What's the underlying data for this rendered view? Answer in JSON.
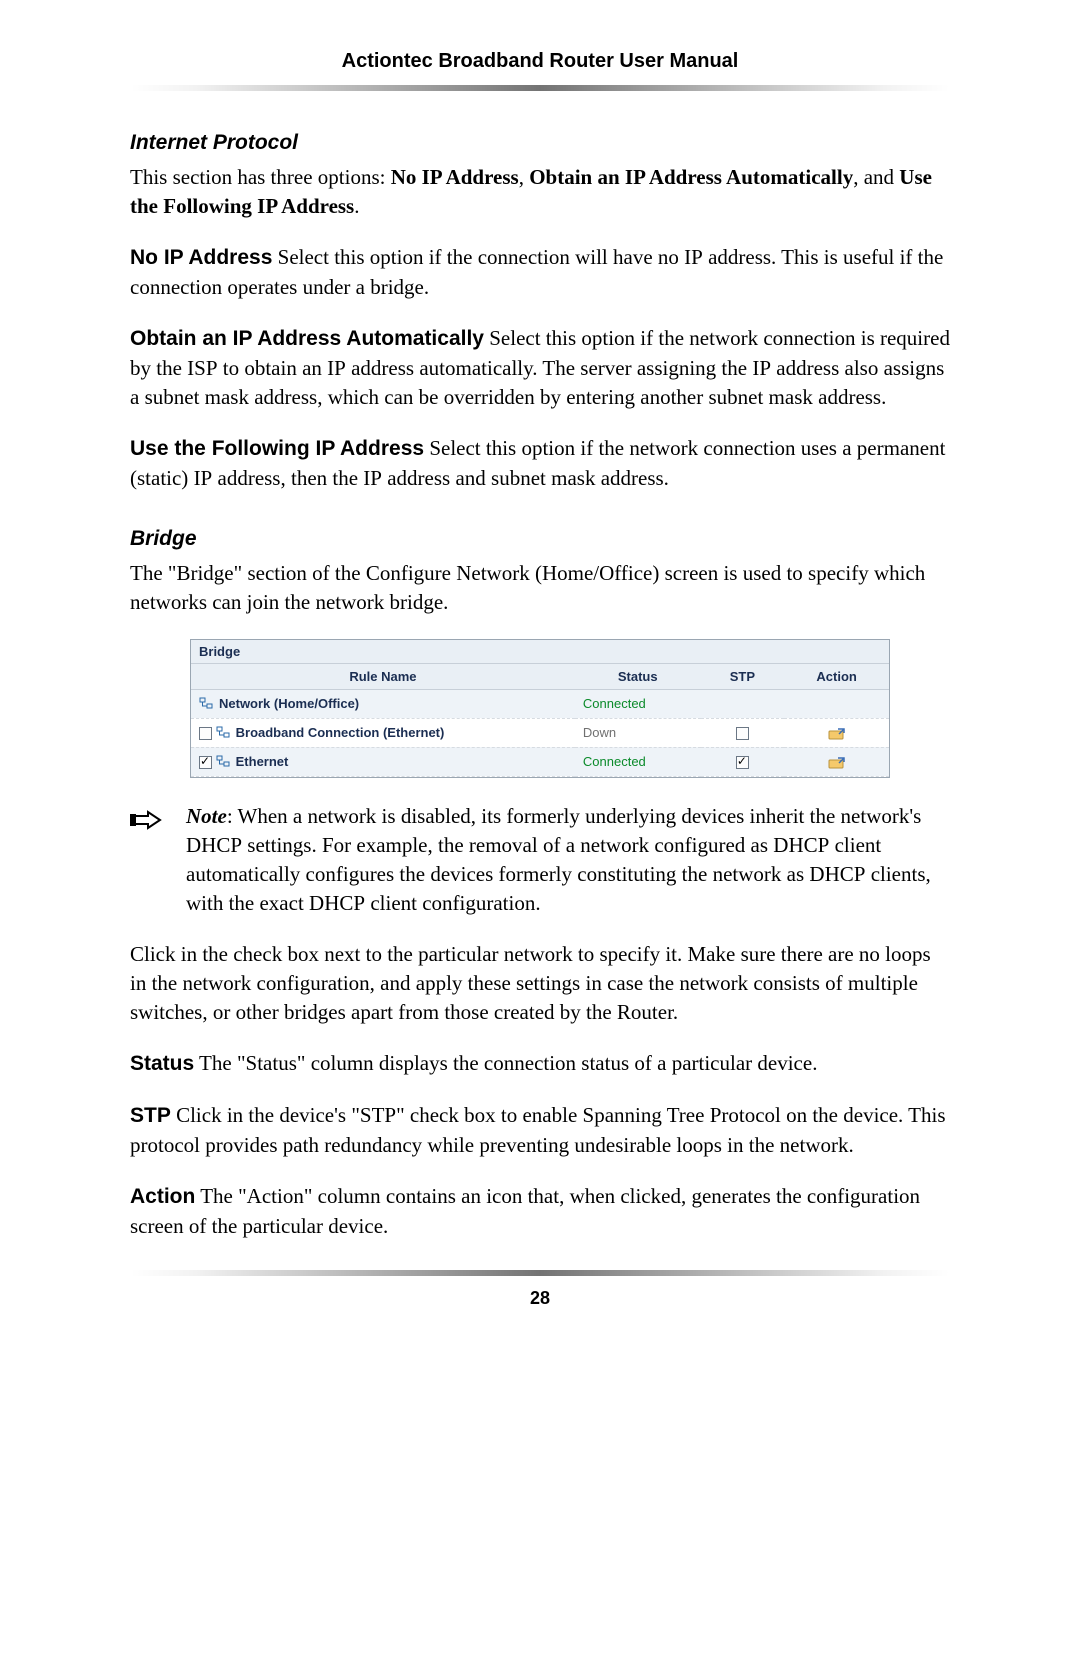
{
  "header": {
    "title": "Actiontec Broadband Router User Manual"
  },
  "page_number": "28",
  "ip": {
    "heading": "Internet Protocol",
    "intro_a": "This section has three options: ",
    "opt1": "No IP Address",
    "sep1": ", ",
    "opt2": "Obtain an IP Address Automatically",
    "sep2": ", and ",
    "opt3": "Use the Following IP Address",
    "intro_end": ".",
    "noip_label": "No IP Address",
    "noip_text_a": "  Select this option if the connection will have no ",
    "noip_ip": "IP",
    "noip_text_b": " address. This is useful if the connection operates under a bridge.",
    "auto_label": "Obtain an IP Address Automatically",
    "auto_text_a": "  Select this option if the network connection is required by the ",
    "auto_isp": "ISP",
    "auto_text_b": " to obtain an ",
    "auto_ip1": "IP",
    "auto_text_c": " address automatically. The server assigning the ",
    "auto_ip2": "IP",
    "auto_text_d": " address also assigns a subnet mask address, which can be overridden by entering another subnet mask address.",
    "static_label": "Use the Following IP Address",
    "static_text_a": "  Select this option if the network connection uses a permanent (static) ",
    "static_ip1": "IP",
    "static_text_b": " address, then the ",
    "static_ip2": "IP",
    "static_text_c": " address and subnet mask address."
  },
  "bridge": {
    "heading": "Bridge",
    "intro": "The \"Bridge\" section of the Configure Network (Home/Office) screen is used to specify which networks can join the network bridge.",
    "table_title": "Bridge",
    "cols": {
      "rule": "Rule Name",
      "status": "Status",
      "stp": "STP",
      "action": "Action"
    },
    "rows": [
      {
        "name": "Network (Home/Office)",
        "status": "Connected",
        "status_class": "status-connected",
        "has_checkbox": false,
        "checked": false,
        "stp_cb": false,
        "stp_checked": false,
        "has_action": false,
        "alt": true,
        "indent": "indent1"
      },
      {
        "name": "Broadband Connection (Ethernet)",
        "status": "Down",
        "status_class": "status-down",
        "has_checkbox": true,
        "checked": false,
        "stp_cb": true,
        "stp_checked": false,
        "has_action": true,
        "alt": false,
        "indent": "indent2"
      },
      {
        "name": "Ethernet",
        "status": "Connected",
        "status_class": "status-connected",
        "has_checkbox": true,
        "checked": true,
        "stp_cb": true,
        "stp_checked": true,
        "has_action": true,
        "alt": true,
        "indent": "indent2"
      }
    ],
    "note_label": "Note",
    "note_a": ": When a network is disabled, its formerly underlying devices inherit the network's ",
    "note_dhcp1": "DHCP",
    "note_b": " settings. For example, the removal of a network configured as ",
    "note_dhcp2": "DHCP",
    "note_c": " client automatically configures the devices formerly constituting the network as ",
    "note_dhcp3": "DHCP",
    "note_d": " clients, with the exact ",
    "note_dhcp4": "DHCP",
    "note_e": " client configuration.",
    "post_note": "Click in the check box next to the particular network to specify it. Make sure there are no loops in the network configuration, and apply these settings in case the network consists of multiple switches, or other bridges apart from those created by the Router.",
    "status_label": "Status",
    "status_text": "  The \"Status\" column displays the connection status of a particular device.",
    "stp_label": "STP",
    "stp_text_a": "  Click in the device's \"",
    "stp_sc": "STP",
    "stp_text_b": "\" check box to enable Spanning Tree Protocol on the device. This protocol provides path redundancy while preventing undesirable loops in the network.",
    "action_label": "Action",
    "action_text": "  The \"Action\" column contains an icon that, when clicked, generates the configuration screen of the particular device."
  },
  "colors": {
    "connected": "#0a8a2a",
    "down": "#707070",
    "table_header_bg": "#e9eff5",
    "table_border": "#9aa6b2"
  }
}
